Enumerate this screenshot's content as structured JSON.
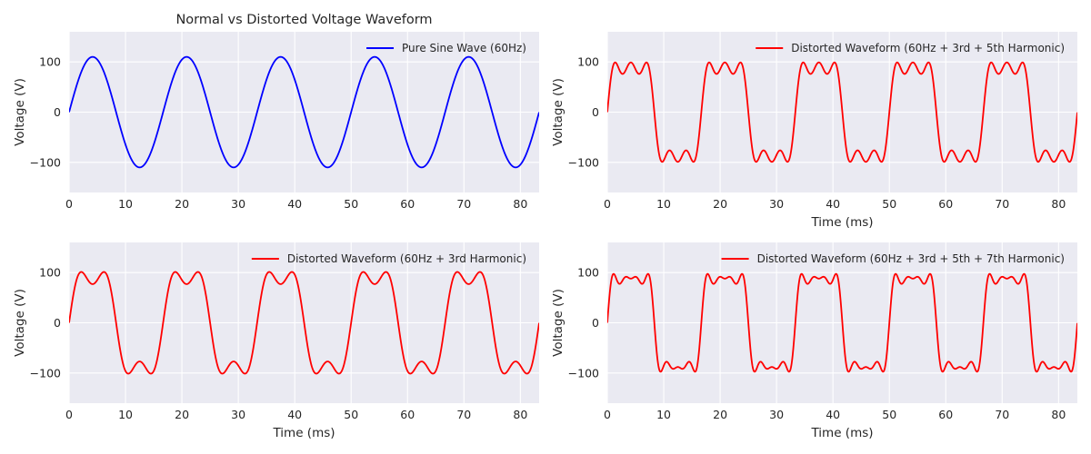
{
  "chart_data": [
    {
      "type": "line",
      "title": "Normal vs Distorted Voltage Waveform",
      "xlabel": "",
      "ylabel": "Voltage (V)",
      "xlim": [
        0,
        83.33
      ],
      "ylim": [
        -160,
        160
      ],
      "xticks": [
        0,
        10,
        20,
        30,
        40,
        50,
        60,
        70,
        80
      ],
      "yticks": [
        -100,
        0,
        100
      ],
      "grid": true,
      "legend_position": "top-right",
      "series": [
        {
          "name": "Pure Sine Wave (60Hz)",
          "color": "#0000ff",
          "fundamental_hz": 60,
          "amplitude": 110,
          "harmonics": []
        }
      ]
    },
    {
      "type": "line",
      "title": "",
      "xlabel": "Time (ms)",
      "ylabel": "Voltage (V)",
      "xlim": [
        0,
        83.33
      ],
      "ylim": [
        -160,
        160
      ],
      "xticks": [
        0,
        10,
        20,
        30,
        40,
        50,
        60,
        70,
        80
      ],
      "yticks": [
        -100,
        0,
        100
      ],
      "grid": true,
      "legend_position": "top-right",
      "series": [
        {
          "name": "Distorted Waveform (60Hz + 3rd + 5th Harmonic)",
          "color": "#ff0000",
          "fundamental_hz": 60,
          "amplitude": 110,
          "harmonics": [
            [
              3,
              0.3
            ],
            [
              5,
              0.2
            ]
          ]
        }
      ]
    },
    {
      "type": "line",
      "title": "",
      "xlabel": "Time (ms)",
      "ylabel": "Voltage (V)",
      "xlim": [
        0,
        83.33
      ],
      "ylim": [
        -160,
        160
      ],
      "xticks": [
        0,
        10,
        20,
        30,
        40,
        50,
        60,
        70,
        80
      ],
      "yticks": [
        -100,
        0,
        100
      ],
      "grid": true,
      "legend_position": "top-right",
      "series": [
        {
          "name": "Distorted Waveform (60Hz + 3rd Harmonic)",
          "color": "#ff0000",
          "fundamental_hz": 60,
          "amplitude": 110,
          "harmonics": [
            [
              3,
              0.3
            ]
          ]
        }
      ]
    },
    {
      "type": "line",
      "title": "",
      "xlabel": "Time (ms)",
      "ylabel": "Voltage (V)",
      "xlim": [
        0,
        83.33
      ],
      "ylim": [
        -160,
        160
      ],
      "xticks": [
        0,
        10,
        20,
        30,
        40,
        50,
        60,
        70,
        80
      ],
      "yticks": [
        -100,
        0,
        100
      ],
      "grid": true,
      "legend_position": "top-right",
      "series": [
        {
          "name": "Distorted Waveform (60Hz + 3rd + 5th  + 7th Harmonic)",
          "color": "#ff0000",
          "fundamental_hz": 60,
          "amplitude": 110,
          "harmonics": [
            [
              3,
              0.3
            ],
            [
              5,
              0.2
            ],
            [
              7,
              0.1
            ]
          ]
        }
      ]
    }
  ]
}
